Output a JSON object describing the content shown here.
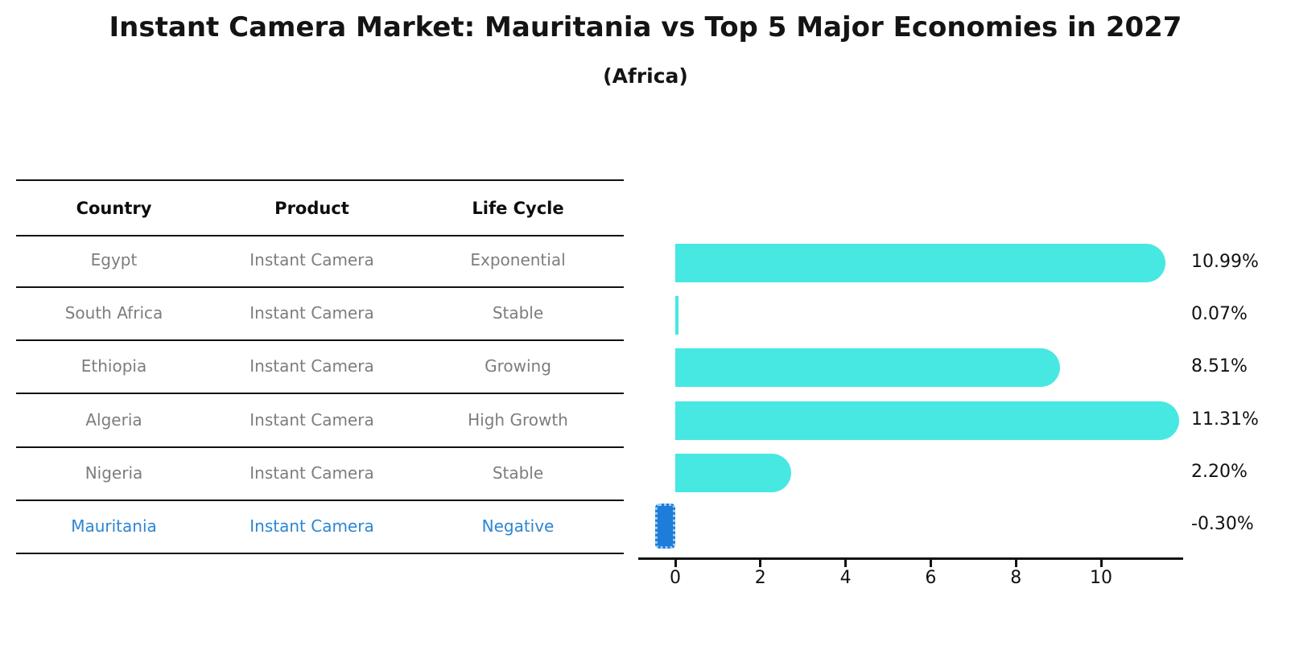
{
  "title": "Instant Camera Market: Mauritania vs Top 5 Major Economies in 2027",
  "subtitle": "(Africa)",
  "colors": {
    "bar_positive": "#47e8e2",
    "bar_negative": "#1e7cdb",
    "highlight_text": "#2c86d2",
    "table_text": "#7d7d7d",
    "axis_text": "#111111"
  },
  "table": {
    "headers": [
      "Country",
      "Product",
      "Life Cycle"
    ],
    "rows": [
      {
        "country": "Egypt",
        "product": "Instant Camera",
        "life_cycle": "Exponential",
        "highlight": false
      },
      {
        "country": "South Africa",
        "product": "Instant Camera",
        "life_cycle": "Stable",
        "highlight": false
      },
      {
        "country": "Ethiopia",
        "product": "Instant Camera",
        "life_cycle": "Growing",
        "highlight": false
      },
      {
        "country": "Algeria",
        "product": "Instant Camera",
        "life_cycle": "High Growth",
        "highlight": false
      },
      {
        "country": "Nigeria",
        "product": "Instant Camera",
        "life_cycle": "Stable",
        "highlight": false
      },
      {
        "country": "Mauritania",
        "product": "Instant Camera",
        "life_cycle": "Negative",
        "highlight": true
      }
    ]
  },
  "chart_data": {
    "type": "bar",
    "orientation": "horizontal",
    "categories": [
      "Egypt",
      "South Africa",
      "Ethiopia",
      "Algeria",
      "Nigeria",
      "Mauritania"
    ],
    "values": [
      10.99,
      0.07,
      8.51,
      11.31,
      2.2,
      -0.3
    ],
    "value_labels": [
      "10.99%",
      "0.07%",
      "8.51%",
      "11.31%",
      "2.20%",
      "-0.30%"
    ],
    "highlight_index": 5,
    "x_ticks": [
      0,
      2,
      4,
      6,
      8,
      10
    ],
    "xlim": [
      -0.88,
      11.89
    ],
    "grid": false,
    "legend": null,
    "title": "",
    "xlabel": "",
    "ylabel": ""
  }
}
